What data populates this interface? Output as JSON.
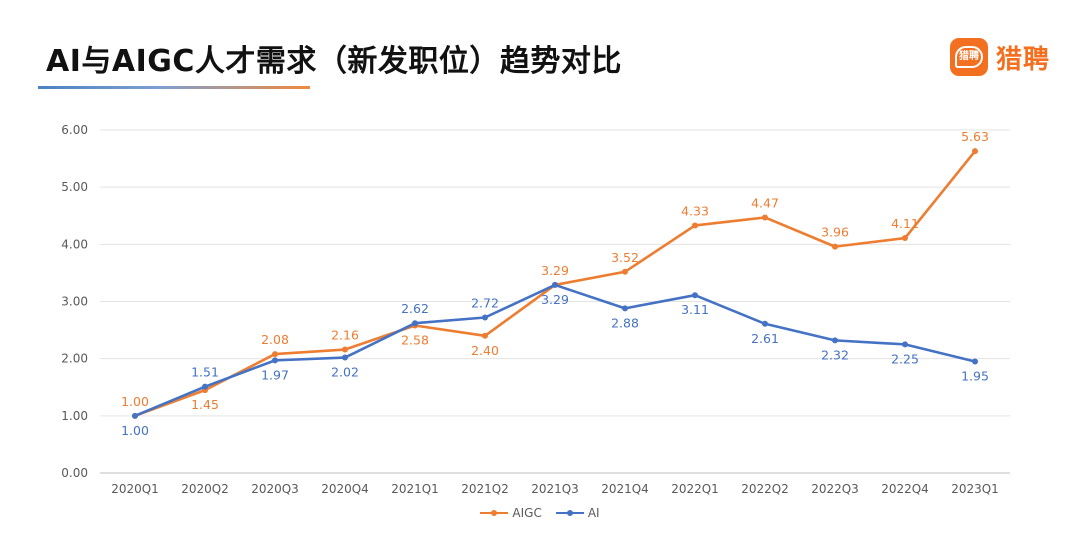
{
  "header": {
    "title": "AI与AIGC人才需求（新发职位）趋势对比",
    "brand_name": "猎聘",
    "brand_icon_text": "猎聘",
    "brand_color": "#f37021"
  },
  "chart_data": {
    "type": "line",
    "title": "AI与AIGC人才需求（新发职位）趋势对比",
    "xlabel": "",
    "ylabel": "",
    "ylim": [
      0,
      6
    ],
    "yticks": [
      0,
      1,
      2,
      3,
      4,
      5,
      6
    ],
    "ytick_labels": [
      "0.00",
      "1.00",
      "2.00",
      "3.00",
      "4.00",
      "5.00",
      "6.00"
    ],
    "grid": true,
    "legend_position": "bottom",
    "categories": [
      "2020Q1",
      "2020Q2",
      "2020Q3",
      "2020Q4",
      "2021Q1",
      "2021Q2",
      "2021Q3",
      "2021Q4",
      "2022Q1",
      "2022Q2",
      "2022Q3",
      "2022Q4",
      "2023Q1"
    ],
    "series": [
      {
        "name": "AIGC",
        "color": "#ed7d31",
        "values": [
          1.0,
          1.45,
          2.08,
          2.16,
          2.58,
          2.4,
          3.29,
          3.52,
          4.33,
          4.47,
          3.96,
          4.11,
          5.63
        ],
        "labels": [
          "1.00",
          "1.45",
          "2.08",
          "2.16",
          "2.58",
          "2.40",
          "3.29",
          "3.52",
          "4.33",
          "4.47",
          "3.96",
          "4.11",
          "5.63"
        ],
        "label_side": [
          "above",
          "below",
          "above",
          "above",
          "below",
          "below",
          "above",
          "above",
          "above",
          "above",
          "above",
          "above",
          "above"
        ]
      },
      {
        "name": "AI",
        "color": "#4472c4",
        "values": [
          1.0,
          1.51,
          1.97,
          2.02,
          2.62,
          2.72,
          3.29,
          2.88,
          3.11,
          2.61,
          2.32,
          2.25,
          1.95
        ],
        "labels": [
          "1.00",
          "1.51",
          "1.97",
          "2.02",
          "2.62",
          "2.72",
          "3.29",
          "2.88",
          "3.11",
          "2.61",
          "2.32",
          "2.25",
          "1.95"
        ],
        "label_side": [
          "below",
          "above",
          "below",
          "below",
          "above",
          "above",
          "below",
          "below",
          "below",
          "below",
          "below",
          "below",
          "below"
        ]
      }
    ]
  }
}
